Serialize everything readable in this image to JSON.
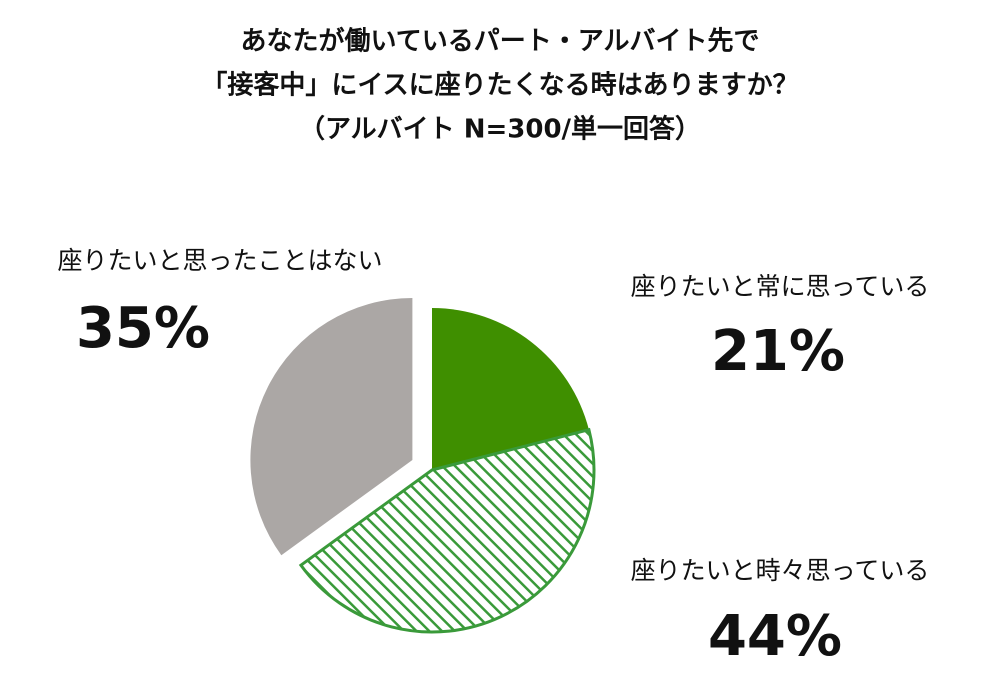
{
  "chart_data": {
    "type": "pie",
    "title": [
      "あなたが働いているパート・アルバイト先で",
      "「接客中」にイスに座りたくなる時はありますか？",
      "（アルバイト N=300/単一回答）"
    ],
    "categories": [
      "座りたいと常に思っている",
      "座りたいと時々思っている",
      "座りたいと思ったことはない"
    ],
    "values": [
      21,
      44,
      35
    ],
    "value_labels": [
      "21%",
      "44%",
      "35%"
    ],
    "colors": [
      "#3f8f00",
      "#3a9a3a",
      "#aba7a5"
    ],
    "hatched": [
      false,
      true,
      false
    ],
    "exploded": [
      false,
      false,
      true
    ]
  }
}
